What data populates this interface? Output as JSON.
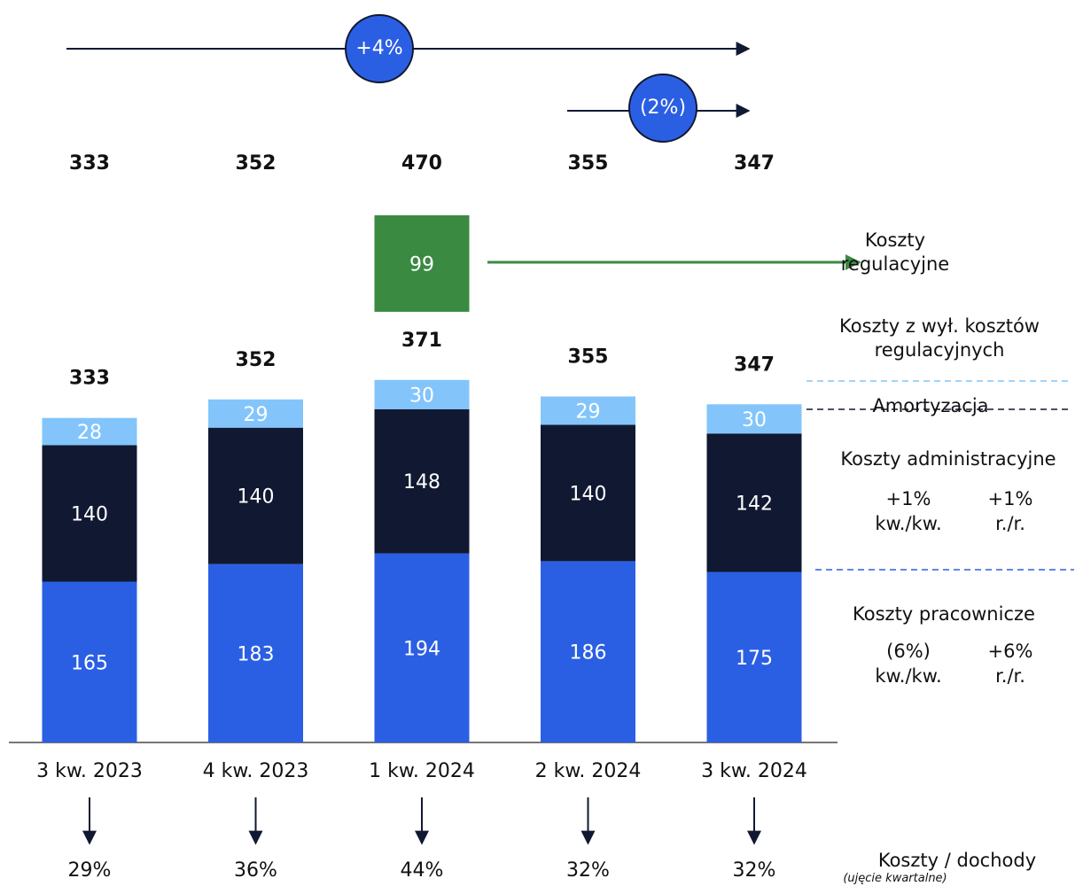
{
  "chart_data": {
    "type": "bar",
    "stacked": true,
    "categories": [
      "3 kw. 2023",
      "4 kw. 2023",
      "1 kw. 2024",
      "2 kw. 2024",
      "3 kw. 2024"
    ],
    "series": [
      {
        "name": "Koszty pracownicze",
        "color": "#2b5fe3",
        "values": [
          165,
          183,
          194,
          186,
          175
        ]
      },
      {
        "name": "Koszty administracyjne",
        "color": "#111932",
        "values": [
          140,
          140,
          148,
          140,
          142
        ]
      },
      {
        "name": "Amortyzacja",
        "color": "#83c5fb",
        "values": [
          28,
          29,
          30,
          29,
          30
        ]
      },
      {
        "name": "Koszty regulacyjne",
        "color": "#3a8a42",
        "values": [
          null,
          null,
          99,
          null,
          null
        ]
      }
    ],
    "subtotal_name": "Koszty z wył. kosztów regulacyjnych",
    "subtotals": [
      333,
      352,
      371,
      355,
      347
    ],
    "totals": [
      333,
      352,
      470,
      355,
      347
    ],
    "growth_arrows": [
      {
        "label": "+4%"
      },
      {
        "label": "(2%)"
      }
    ],
    "series_notes": {
      "Koszty administracyjne": [
        {
          "change": "+1%",
          "period": "kw./kw."
        },
        {
          "change": "+1%",
          "period": "r./r."
        }
      ],
      "Koszty pracownicze": [
        {
          "change": "(6%)",
          "period": "kw./kw."
        },
        {
          "change": "+6%",
          "period": "r./r."
        }
      ]
    },
    "ratio": {
      "name": "Koszty / dochody",
      "note": "(ujęcie kwartalne)",
      "values": [
        29,
        36,
        44,
        32,
        32
      ],
      "value_labels": [
        "29%",
        "36%",
        "44%",
        "32%",
        "32%"
      ]
    }
  }
}
